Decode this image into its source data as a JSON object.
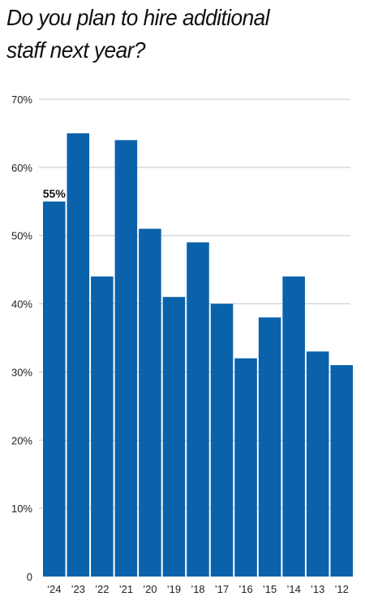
{
  "title": {
    "line1": "Do you plan to hire additional",
    "line2": "staff next year?"
  },
  "colors": {
    "bar": "#0a62ab",
    "grid": "#c8c8c8"
  },
  "chart_data": {
    "type": "bar",
    "categories": [
      "‘24",
      "’23",
      "’22",
      "’21",
      "’20",
      "’19",
      "’18",
      "’17",
      "’16",
      "’15",
      "’14",
      "’13",
      "’12"
    ],
    "values": [
      55,
      65,
      44,
      64,
      51,
      41,
      49,
      40,
      32,
      38,
      44,
      33,
      31
    ],
    "data_labels": [
      {
        "index": 0,
        "text": "55%"
      }
    ],
    "yticks": [
      0,
      10,
      20,
      30,
      40,
      50,
      60,
      70
    ],
    "ytick_labels": [
      "0",
      "10%",
      "20%",
      "30%",
      "40%",
      "50%",
      "60%",
      "70%"
    ],
    "ylim": [
      0,
      70
    ],
    "grid": true,
    "xlabel": "",
    "ylabel": ""
  }
}
